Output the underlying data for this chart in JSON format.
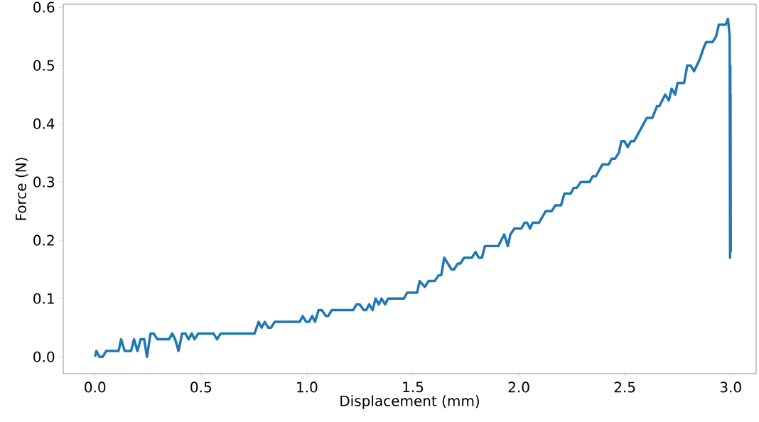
{
  "chart_data": {
    "type": "line",
    "xlabel": "Displacement (mm)",
    "ylabel": "Force (N)",
    "xlim": [
      -0.15,
      3.12
    ],
    "ylim": [
      -0.029,
      0.605
    ],
    "xticks": [
      {
        "value": 0,
        "label": "0.0"
      },
      0.5,
      {
        "value": 1,
        "label": "1.0"
      },
      1.5,
      {
        "value": 2,
        "label": "2.0"
      },
      2.5,
      {
        "value": 3,
        "label": "3.0"
      }
    ],
    "yticks": [
      {
        "value": 0,
        "label": "0.0"
      },
      0.1,
      0.2,
      0.3,
      0.4,
      0.5,
      0.6
    ],
    "series": [
      {
        "color": "#1f77b4",
        "x": [
          0,
          0.006,
          0.021,
          0.036,
          0.053,
          0.111,
          0.123,
          0.14,
          0.17,
          0.184,
          0.2,
          0.215,
          0.232,
          0.245,
          0.262,
          0.277,
          0.294,
          0.349,
          0.364,
          0.378,
          0.394,
          0.411,
          0.426,
          0.441,
          0.456,
          0.47,
          0.487,
          0.559,
          0.576,
          0.593,
          0.753,
          0.772,
          0.786,
          0.801,
          0.817,
          0.831,
          0.848,
          0.966,
          0.98,
          0.996,
          1.01,
          1.025,
          1.038,
          1.055,
          1.07,
          1.089,
          1.1,
          1.117,
          1.218,
          1.234,
          1.249,
          1.268,
          1.279,
          1.294,
          1.31,
          1.324,
          1.339,
          1.352,
          1.369,
          1.383,
          1.458,
          1.473,
          1.52,
          1.532,
          1.556,
          1.574,
          1.603,
          1.622,
          1.634,
          1.648,
          1.682,
          1.694,
          1.712,
          1.724,
          1.742,
          1.778,
          1.796,
          1.811,
          1.826,
          1.84,
          1.903,
          1.931,
          1.948,
          1.96,
          1.979,
          2.011,
          2.027,
          2.039,
          2.053,
          2.065,
          2.095,
          2.127,
          2.155,
          2.173,
          2.199,
          2.215,
          2.245,
          2.259,
          2.274,
          2.292,
          2.334,
          2.349,
          2.364,
          2.394,
          2.424,
          2.438,
          2.454,
          2.472,
          2.484,
          2.498,
          2.514,
          2.529,
          2.544,
          2.604,
          2.63,
          2.652,
          2.663,
          2.691,
          2.708,
          2.721,
          2.738,
          2.749,
          2.78,
          2.795,
          2.811,
          2.827,
          2.853,
          2.872,
          2.884,
          2.914,
          2.931,
          2.944,
          2.976,
          2.987,
          2.995,
          2.997,
          2.998,
          2.998,
          2.999,
          3.0
        ],
        "values": [
          0,
          0.01,
          0,
          0,
          0.01,
          0.01,
          0.03,
          0.01,
          0.01,
          0.03,
          0.01,
          0.03,
          0.03,
          0,
          0.04,
          0.04,
          0.03,
          0.03,
          0.04,
          0.03,
          0.01,
          0.04,
          0.04,
          0.03,
          0.04,
          0.03,
          0.04,
          0.04,
          0.03,
          0.04,
          0.04,
          0.06,
          0.05,
          0.06,
          0.05,
          0.05,
          0.06,
          0.06,
          0.07,
          0.06,
          0.06,
          0.07,
          0.06,
          0.08,
          0.08,
          0.07,
          0.07,
          0.08,
          0.08,
          0.09,
          0.09,
          0.08,
          0.08,
          0.09,
          0.08,
          0.1,
          0.09,
          0.1,
          0.09,
          0.1,
          0.1,
          0.11,
          0.11,
          0.13,
          0.12,
          0.13,
          0.13,
          0.14,
          0.14,
          0.17,
          0.15,
          0.15,
          0.16,
          0.16,
          0.17,
          0.17,
          0.18,
          0.17,
          0.17,
          0.19,
          0.19,
          0.21,
          0.19,
          0.21,
          0.22,
          0.22,
          0.23,
          0.23,
          0.22,
          0.23,
          0.23,
          0.25,
          0.25,
          0.26,
          0.26,
          0.28,
          0.28,
          0.29,
          0.29,
          0.3,
          0.3,
          0.31,
          0.31,
          0.33,
          0.33,
          0.34,
          0.34,
          0.35,
          0.37,
          0.37,
          0.36,
          0.37,
          0.37,
          0.41,
          0.41,
          0.43,
          0.43,
          0.45,
          0.44,
          0.46,
          0.45,
          0.47,
          0.47,
          0.5,
          0.5,
          0.49,
          0.51,
          0.53,
          0.54,
          0.54,
          0.55,
          0.57,
          0.57,
          0.58,
          0.55,
          0.17,
          0.5,
          0.19,
          0.45,
          0.18
        ]
      }
    ]
  }
}
